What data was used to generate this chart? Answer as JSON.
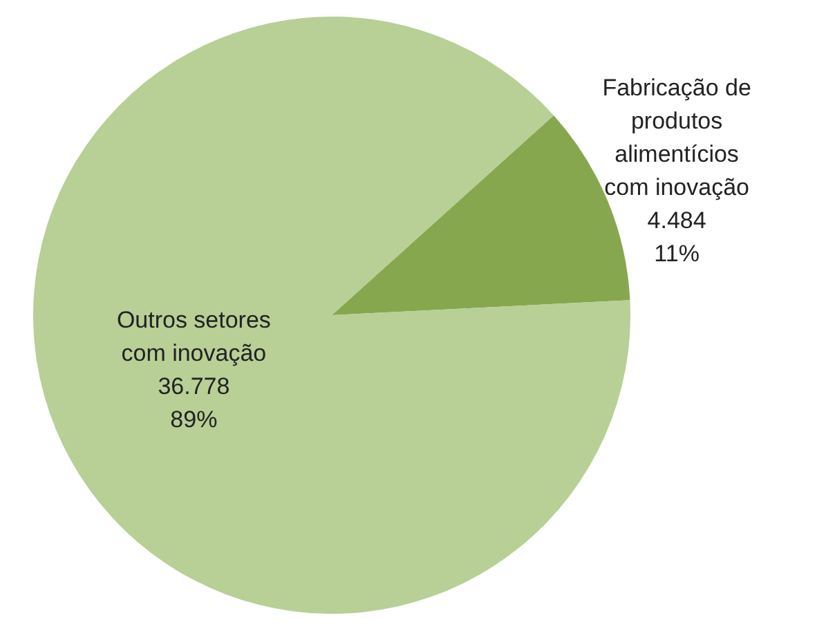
{
  "chart_data": {
    "type": "pie",
    "categories": [
      "Fabricação de produtos alimentícios com inovação",
      "Outros setores com inovação"
    ],
    "values": [
      4484,
      36778
    ],
    "colors": [
      "#87a74f",
      "#b8cf96"
    ],
    "value_labels": [
      "4.484\n11%",
      "36.778\n89%"
    ]
  }
}
